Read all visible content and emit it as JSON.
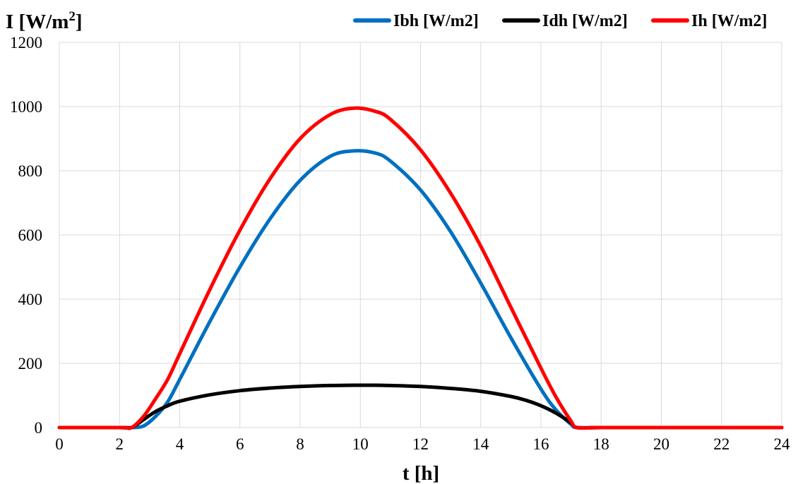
{
  "chart_data": {
    "type": "line",
    "title": "",
    "ylabel_main": "I [W/m",
    "ylabel_sup": "2",
    "ylabel_close": "]",
    "xlabel": "t [h]",
    "xlim": [
      0,
      24
    ],
    "ylim": [
      0,
      1200
    ],
    "x_ticks": [
      0,
      2,
      4,
      6,
      8,
      10,
      12,
      14,
      16,
      18,
      20,
      22,
      24
    ],
    "y_ticks": [
      0,
      200,
      400,
      600,
      800,
      1000,
      1200
    ],
    "grid": true,
    "legend_position": "top-right",
    "series": [
      {
        "name": "Ibh [W/m2]",
        "color": "#0070c0",
        "x": [
          0,
          2,
          2.4,
          2.8,
          3.2,
          3.6,
          4,
          5,
          6,
          7,
          8,
          9,
          9.8,
          10.5,
          11,
          12,
          13,
          14,
          15,
          16,
          16.5,
          17,
          17.2,
          18,
          20,
          22,
          24
        ],
        "y": [
          0,
          0,
          0,
          5,
          35,
          80,
          150,
          330,
          500,
          650,
          770,
          845,
          862,
          855,
          830,
          740,
          610,
          450,
          280,
          120,
          55,
          10,
          0,
          0,
          0,
          0,
          0
        ]
      },
      {
        "name": "Idh [W/m2]",
        "color": "#000000",
        "x": [
          0,
          2,
          2.4,
          2.8,
          3.2,
          3.6,
          4,
          5,
          6,
          7,
          8,
          9,
          9.8,
          10.5,
          11,
          12,
          13,
          14,
          15,
          15.5,
          16,
          16.5,
          17,
          17.2,
          18,
          20,
          22,
          24
        ],
        "y": [
          0,
          0,
          0,
          25,
          50,
          68,
          82,
          102,
          115,
          123,
          128,
          131,
          132,
          132,
          131,
          128,
          122,
          113,
          97,
          85,
          68,
          45,
          15,
          0,
          0,
          0,
          0,
          0
        ]
      },
      {
        "name": "Ih [W/m2]",
        "color": "#ff0000",
        "x": [
          0,
          2,
          2.4,
          2.8,
          3.2,
          3.6,
          4,
          5,
          6,
          7,
          8,
          9,
          9.8,
          10.5,
          11,
          12,
          13,
          14,
          15,
          16,
          16.5,
          17,
          17.2,
          18,
          20,
          22,
          24
        ],
        "y": [
          0,
          0,
          0,
          35,
          90,
          150,
          230,
          430,
          615,
          775,
          900,
          975,
          995,
          985,
          960,
          865,
          730,
          565,
          375,
          185,
          95,
          20,
          0,
          0,
          0,
          0,
          0
        ]
      }
    ]
  }
}
